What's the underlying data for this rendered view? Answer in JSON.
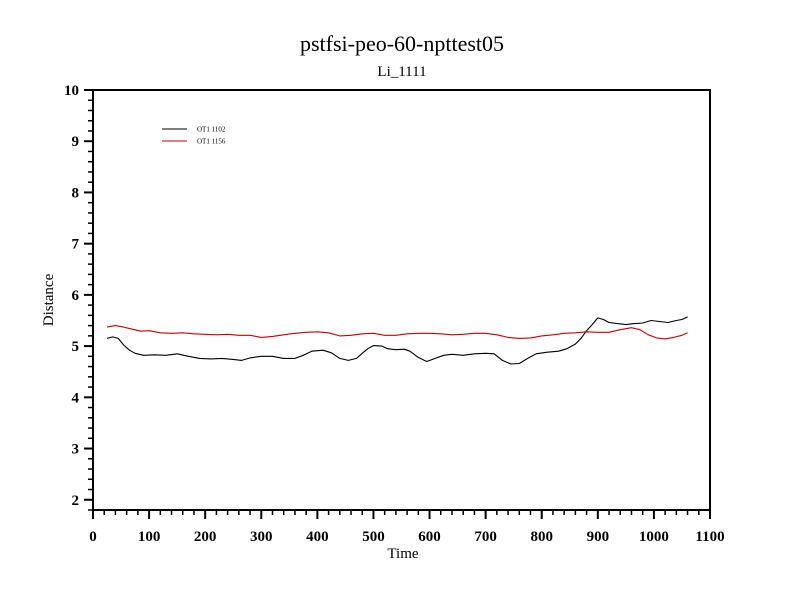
{
  "chart_data": {
    "type": "line",
    "title": "pstfsi-peo-60-npttest05",
    "subtitle": "Li_1111",
    "xlabel": "Time",
    "ylabel": "Distance",
    "xlim": [
      0,
      1100
    ],
    "ylim": [
      1.8,
      10
    ],
    "x_ticks": [
      "0",
      "100",
      "200",
      "300",
      "400",
      "500",
      "600",
      "700",
      "800",
      "900",
      "1000",
      "1100"
    ],
    "y_ticks": [
      "2",
      "3",
      "4",
      "5",
      "6",
      "7",
      "8",
      "9",
      "10"
    ],
    "grid": false,
    "legend_position": "top-left",
    "series": [
      {
        "name": "OT1 1102",
        "color": "#000000",
        "points": [
          [
            25,
            5.15
          ],
          [
            35,
            5.18
          ],
          [
            45,
            5.15
          ],
          [
            55,
            5.02
          ],
          [
            65,
            4.92
          ],
          [
            75,
            4.86
          ],
          [
            90,
            4.82
          ],
          [
            110,
            4.83
          ],
          [
            130,
            4.82
          ],
          [
            150,
            4.85
          ],
          [
            170,
            4.8
          ],
          [
            190,
            4.76
          ],
          [
            210,
            4.75
          ],
          [
            230,
            4.76
          ],
          [
            250,
            4.74
          ],
          [
            265,
            4.72
          ],
          [
            280,
            4.77
          ],
          [
            300,
            4.8
          ],
          [
            320,
            4.8
          ],
          [
            340,
            4.76
          ],
          [
            360,
            4.76
          ],
          [
            375,
            4.82
          ],
          [
            390,
            4.9
          ],
          [
            410,
            4.92
          ],
          [
            425,
            4.87
          ],
          [
            440,
            4.76
          ],
          [
            455,
            4.72
          ],
          [
            470,
            4.76
          ],
          [
            480,
            4.86
          ],
          [
            490,
            4.95
          ],
          [
            500,
            5.01
          ],
          [
            515,
            5.0
          ],
          [
            525,
            4.95
          ],
          [
            540,
            4.93
          ],
          [
            555,
            4.94
          ],
          [
            565,
            4.9
          ],
          [
            580,
            4.78
          ],
          [
            595,
            4.7
          ],
          [
            610,
            4.76
          ],
          [
            625,
            4.82
          ],
          [
            640,
            4.84
          ],
          [
            660,
            4.82
          ],
          [
            680,
            4.85
          ],
          [
            700,
            4.86
          ],
          [
            715,
            4.85
          ],
          [
            730,
            4.72
          ],
          [
            745,
            4.65
          ],
          [
            760,
            4.66
          ],
          [
            775,
            4.76
          ],
          [
            790,
            4.85
          ],
          [
            810,
            4.88
          ],
          [
            830,
            4.9
          ],
          [
            845,
            4.95
          ],
          [
            860,
            5.04
          ],
          [
            870,
            5.15
          ],
          [
            880,
            5.3
          ],
          [
            890,
            5.42
          ],
          [
            900,
            5.55
          ],
          [
            910,
            5.52
          ],
          [
            920,
            5.46
          ],
          [
            935,
            5.44
          ],
          [
            950,
            5.42
          ],
          [
            965,
            5.44
          ],
          [
            980,
            5.45
          ],
          [
            995,
            5.5
          ],
          [
            1010,
            5.48
          ],
          [
            1025,
            5.46
          ],
          [
            1040,
            5.5
          ],
          [
            1050,
            5.52
          ],
          [
            1060,
            5.57
          ]
        ]
      },
      {
        "name": "OT1 1156",
        "color": "#cc0000",
        "points": [
          [
            25,
            5.37
          ],
          [
            40,
            5.4
          ],
          [
            55,
            5.37
          ],
          [
            70,
            5.33
          ],
          [
            85,
            5.29
          ],
          [
            100,
            5.3
          ],
          [
            120,
            5.26
          ],
          [
            140,
            5.25
          ],
          [
            160,
            5.26
          ],
          [
            180,
            5.24
          ],
          [
            200,
            5.23
          ],
          [
            220,
            5.22
          ],
          [
            240,
            5.23
          ],
          [
            260,
            5.21
          ],
          [
            280,
            5.21
          ],
          [
            300,
            5.17
          ],
          [
            320,
            5.19
          ],
          [
            340,
            5.22
          ],
          [
            360,
            5.25
          ],
          [
            380,
            5.27
          ],
          [
            400,
            5.28
          ],
          [
            420,
            5.26
          ],
          [
            440,
            5.2
          ],
          [
            460,
            5.21
          ],
          [
            480,
            5.24
          ],
          [
            500,
            5.25
          ],
          [
            520,
            5.21
          ],
          [
            540,
            5.21
          ],
          [
            560,
            5.24
          ],
          [
            580,
            5.25
          ],
          [
            600,
            5.25
          ],
          [
            620,
            5.24
          ],
          [
            640,
            5.22
          ],
          [
            660,
            5.23
          ],
          [
            680,
            5.25
          ],
          [
            700,
            5.25
          ],
          [
            720,
            5.22
          ],
          [
            740,
            5.17
          ],
          [
            760,
            5.15
          ],
          [
            780,
            5.16
          ],
          [
            800,
            5.2
          ],
          [
            820,
            5.22
          ],
          [
            840,
            5.25
          ],
          [
            860,
            5.26
          ],
          [
            880,
            5.28
          ],
          [
            900,
            5.27
          ],
          [
            920,
            5.27
          ],
          [
            940,
            5.32
          ],
          [
            960,
            5.36
          ],
          [
            975,
            5.32
          ],
          [
            990,
            5.22
          ],
          [
            1005,
            5.16
          ],
          [
            1020,
            5.14
          ],
          [
            1035,
            5.17
          ],
          [
            1050,
            5.21
          ],
          [
            1060,
            5.26
          ]
        ]
      }
    ]
  }
}
